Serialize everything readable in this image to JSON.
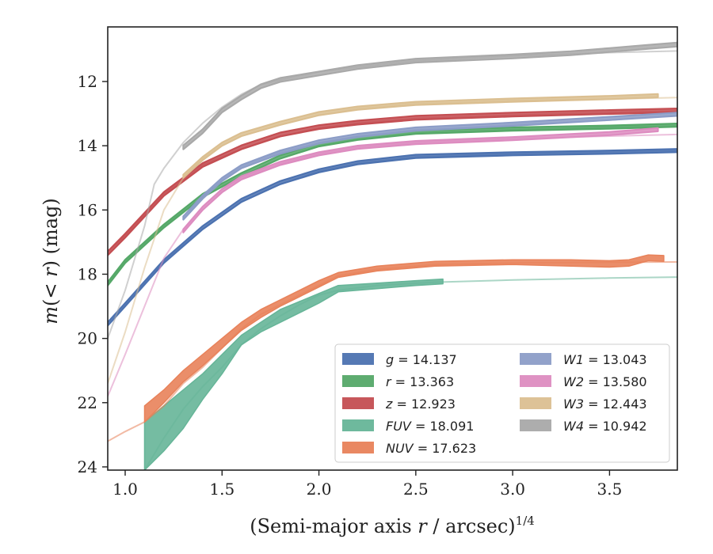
{
  "chart_data": {
    "type": "line",
    "xlabel": "(Semi-major axis r / arcsec)1/4",
    "xlabel_main": "(Semi-major axis ",
    "xlabel_var": "r",
    "xlabel_tail": " / arcsec)",
    "xlabel_sup": "1/4",
    "ylabel": "m(< r) (mag)",
    "ylabel_m": "m",
    "ylabel_paren_open": "(",
    "ylabel_lt": "< ",
    "ylabel_r": "r",
    "ylabel_paren_close": ")",
    "ylabel_unit": " (mag)",
    "xlim": [
      0.91,
      3.85
    ],
    "ylim": [
      24.1,
      10.3
    ],
    "y_inverted": true,
    "xticks": [
      1.0,
      1.5,
      2.0,
      2.5,
      3.0,
      3.5
    ],
    "xtick_labels": [
      "1.0",
      "1.5",
      "2.0",
      "2.5",
      "3.0",
      "3.5"
    ],
    "yticks": [
      12,
      14,
      16,
      18,
      20,
      22,
      24
    ],
    "ytick_labels": [
      "12",
      "14",
      "16",
      "18",
      "20",
      "22",
      "24"
    ],
    "grid": false,
    "legend_position": "lower-right",
    "series": [
      {
        "name": "g = 14.137",
        "band": "g",
        "value": "14.137",
        "color": "#4c72b0",
        "model": [
          [
            0.91,
            19.6
          ],
          [
            1.0,
            19.0
          ],
          [
            1.2,
            17.6
          ],
          [
            1.4,
            16.6
          ],
          [
            1.6,
            15.75
          ],
          [
            1.8,
            15.2
          ],
          [
            2.0,
            14.8
          ],
          [
            2.2,
            14.55
          ],
          [
            2.5,
            14.35
          ],
          [
            3.0,
            14.25
          ],
          [
            3.5,
            14.2
          ],
          [
            3.85,
            14.15
          ]
        ],
        "data": [
          [
            0.91,
            19.55
          ],
          [
            1.0,
            18.95
          ],
          [
            1.2,
            17.6
          ],
          [
            1.4,
            16.55
          ],
          [
            1.6,
            15.7
          ],
          [
            1.8,
            15.15
          ],
          [
            2.0,
            14.78
          ],
          [
            2.2,
            14.53
          ],
          [
            2.5,
            14.33
          ],
          [
            3.0,
            14.25
          ],
          [
            3.5,
            14.2
          ],
          [
            3.85,
            14.15
          ]
        ],
        "band_width": 0.05
      },
      {
        "name": "r = 13.363",
        "band": "r",
        "value": "13.363",
        "color": "#55a868",
        "model": [
          [
            0.91,
            18.3
          ],
          [
            1.0,
            17.6
          ],
          [
            1.2,
            16.5
          ],
          [
            1.4,
            15.6
          ],
          [
            1.6,
            14.95
          ],
          [
            1.8,
            14.4
          ],
          [
            2.0,
            14.0
          ],
          [
            2.2,
            13.8
          ],
          [
            2.5,
            13.6
          ],
          [
            3.0,
            13.5
          ],
          [
            3.5,
            13.42
          ],
          [
            3.85,
            13.38
          ]
        ],
        "data": [
          [
            0.91,
            18.3
          ],
          [
            1.0,
            17.6
          ],
          [
            1.2,
            16.5
          ],
          [
            1.4,
            15.55
          ],
          [
            1.6,
            14.9
          ],
          [
            1.8,
            14.35
          ],
          [
            2.0,
            13.97
          ],
          [
            2.2,
            13.77
          ],
          [
            2.5,
            13.58
          ],
          [
            3.0,
            13.48
          ],
          [
            3.5,
            13.42
          ],
          [
            3.85,
            13.36
          ]
        ],
        "band_width": 0.05
      },
      {
        "name": "z = 12.923",
        "band": "z",
        "value": "12.923",
        "color": "#c44e52",
        "model": [
          [
            0.91,
            17.3
          ],
          [
            1.0,
            16.8
          ],
          [
            1.2,
            15.5
          ],
          [
            1.4,
            14.6
          ],
          [
            1.6,
            14.1
          ],
          [
            1.8,
            13.7
          ],
          [
            2.0,
            13.45
          ],
          [
            2.2,
            13.3
          ],
          [
            2.5,
            13.15
          ],
          [
            3.0,
            13.05
          ],
          [
            3.5,
            12.97
          ],
          [
            3.85,
            12.92
          ]
        ],
        "data": [
          [
            0.91,
            17.35
          ],
          [
            1.0,
            16.8
          ],
          [
            1.2,
            15.5
          ],
          [
            1.4,
            14.6
          ],
          [
            1.6,
            14.05
          ],
          [
            1.8,
            13.65
          ],
          [
            2.0,
            13.42
          ],
          [
            2.2,
            13.28
          ],
          [
            2.5,
            13.13
          ],
          [
            3.0,
            13.03
          ],
          [
            3.5,
            12.95
          ],
          [
            3.85,
            12.9
          ]
        ],
        "band_width": 0.06
      },
      {
        "name": "FUV = 18.091",
        "band": "FUV",
        "value": "18.091",
        "color": "#66b598",
        "model": [
          [
            1.1,
            24.1
          ],
          [
            1.2,
            23.1
          ],
          [
            1.3,
            22.2
          ],
          [
            1.4,
            21.5
          ],
          [
            1.5,
            20.9
          ],
          [
            1.6,
            20.2
          ],
          [
            1.7,
            19.7
          ],
          [
            1.8,
            19.3
          ],
          [
            1.9,
            18.95
          ],
          [
            2.0,
            18.65
          ],
          [
            2.1,
            18.5
          ],
          [
            2.3,
            18.35
          ],
          [
            2.6,
            18.25
          ],
          [
            3.0,
            18.18
          ],
          [
            3.5,
            18.12
          ],
          [
            3.85,
            18.09
          ]
        ],
        "data_upper": [
          [
            1.1,
            24.1
          ],
          [
            1.2,
            23.5
          ],
          [
            1.3,
            22.8
          ],
          [
            1.4,
            21.9
          ],
          [
            1.5,
            21.1
          ],
          [
            1.6,
            20.2
          ],
          [
            1.7,
            19.8
          ],
          [
            1.8,
            19.5
          ],
          [
            1.9,
            19.2
          ],
          [
            2.0,
            18.9
          ],
          [
            2.1,
            18.55
          ],
          [
            2.3,
            18.45
          ],
          [
            2.5,
            18.35
          ],
          [
            2.64,
            18.3
          ]
        ],
        "data_lower": [
          [
            1.1,
            22.6
          ],
          [
            1.2,
            22.1
          ],
          [
            1.3,
            21.6
          ],
          [
            1.4,
            21.1
          ],
          [
            1.5,
            20.5
          ],
          [
            1.6,
            19.9
          ],
          [
            1.7,
            19.5
          ],
          [
            1.8,
            19.1
          ],
          [
            1.9,
            18.85
          ],
          [
            2.0,
            18.6
          ],
          [
            2.1,
            18.35
          ],
          [
            2.3,
            18.28
          ],
          [
            2.5,
            18.2
          ],
          [
            2.64,
            18.15
          ]
        ],
        "band_width": 0
      },
      {
        "name": "NUV = 17.623",
        "band": "NUV",
        "value": "17.623",
        "color": "#e8825a",
        "model": [
          [
            0.91,
            23.2
          ],
          [
            1.0,
            22.9
          ],
          [
            1.1,
            22.6
          ],
          [
            1.2,
            22.1
          ],
          [
            1.3,
            21.4
          ],
          [
            1.4,
            20.9
          ],
          [
            1.5,
            20.3
          ],
          [
            1.6,
            19.7
          ],
          [
            1.7,
            19.25
          ],
          [
            1.8,
            18.95
          ],
          [
            1.9,
            18.65
          ],
          [
            2.0,
            18.35
          ],
          [
            2.1,
            18.05
          ],
          [
            2.3,
            17.85
          ],
          [
            2.6,
            17.7
          ],
          [
            3.0,
            17.65
          ],
          [
            3.5,
            17.63
          ],
          [
            3.85,
            17.62
          ]
        ],
        "data_upper": [
          [
            1.1,
            22.6
          ],
          [
            1.2,
            22.0
          ],
          [
            1.3,
            21.35
          ],
          [
            1.4,
            20.85
          ],
          [
            1.5,
            20.3
          ],
          [
            1.6,
            19.75
          ],
          [
            1.7,
            19.35
          ],
          [
            1.8,
            19.0
          ],
          [
            1.9,
            18.7
          ],
          [
            2.0,
            18.4
          ],
          [
            2.1,
            18.1
          ],
          [
            2.3,
            17.9
          ],
          [
            2.6,
            17.75
          ],
          [
            3.0,
            17.7
          ],
          [
            3.3,
            17.75
          ],
          [
            3.5,
            17.78
          ],
          [
            3.6,
            17.75
          ],
          [
            3.7,
            17.58
          ],
          [
            3.78,
            17.6
          ]
        ],
        "data_lower": [
          [
            1.1,
            22.1
          ],
          [
            1.2,
            21.6
          ],
          [
            1.3,
            21.0
          ],
          [
            1.4,
            20.5
          ],
          [
            1.5,
            20.0
          ],
          [
            1.6,
            19.5
          ],
          [
            1.7,
            19.1
          ],
          [
            1.8,
            18.8
          ],
          [
            1.9,
            18.5
          ],
          [
            2.0,
            18.2
          ],
          [
            2.1,
            17.95
          ],
          [
            2.3,
            17.75
          ],
          [
            2.6,
            17.6
          ],
          [
            3.0,
            17.55
          ],
          [
            3.3,
            17.55
          ],
          [
            3.5,
            17.58
          ],
          [
            3.6,
            17.55
          ],
          [
            3.7,
            17.4
          ],
          [
            3.78,
            17.42
          ]
        ],
        "band_width": 0
      },
      {
        "name": "W1 = 13.043",
        "band": "W1",
        "value": "13.043",
        "color": "#8c9dc7",
        "model": [
          [
            1.3,
            16.2
          ],
          [
            1.4,
            15.6
          ],
          [
            1.5,
            15.05
          ],
          [
            1.6,
            14.65
          ],
          [
            1.8,
            14.2
          ],
          [
            2.0,
            13.9
          ],
          [
            2.2,
            13.7
          ],
          [
            2.5,
            13.5
          ],
          [
            3.0,
            13.35
          ],
          [
            3.5,
            13.2
          ],
          [
            3.85,
            13.05
          ]
        ],
        "data": [
          [
            1.3,
            16.25
          ],
          [
            1.4,
            15.6
          ],
          [
            1.5,
            15.05
          ],
          [
            1.6,
            14.65
          ],
          [
            1.8,
            14.2
          ],
          [
            2.0,
            13.88
          ],
          [
            2.2,
            13.68
          ],
          [
            2.5,
            13.48
          ],
          [
            3.0,
            13.33
          ],
          [
            3.5,
            13.15
          ],
          [
            3.85,
            13.02
          ]
        ],
        "band_width": 0.05
      },
      {
        "name": "W2 = 13.580",
        "band": "W2",
        "value": "13.580",
        "color": "#dd8cc0",
        "model": [
          [
            0.91,
            21.8
          ],
          [
            1.0,
            20.5
          ],
          [
            1.1,
            19.0
          ],
          [
            1.2,
            17.5
          ],
          [
            1.3,
            16.6
          ],
          [
            1.4,
            15.9
          ],
          [
            1.5,
            15.35
          ],
          [
            1.6,
            15.0
          ],
          [
            1.8,
            14.55
          ],
          [
            2.0,
            14.25
          ],
          [
            2.2,
            14.05
          ],
          [
            2.5,
            13.9
          ],
          [
            3.0,
            13.78
          ],
          [
            3.5,
            13.7
          ],
          [
            3.85,
            13.65
          ]
        ],
        "data": [
          [
            1.3,
            16.65
          ],
          [
            1.4,
            15.95
          ],
          [
            1.5,
            15.4
          ],
          [
            1.6,
            15.0
          ],
          [
            1.8,
            14.55
          ],
          [
            2.0,
            14.25
          ],
          [
            2.2,
            14.05
          ],
          [
            2.5,
            13.9
          ],
          [
            3.0,
            13.78
          ],
          [
            3.5,
            13.62
          ],
          [
            3.75,
            13.5
          ]
        ],
        "band_width": 0.05
      },
      {
        "name": "W3 = 12.443",
        "band": "W3",
        "value": "12.443",
        "color": "#dbbf91",
        "model": [
          [
            0.91,
            21.4
          ],
          [
            1.0,
            19.8
          ],
          [
            1.1,
            17.8
          ],
          [
            1.2,
            16.0
          ],
          [
            1.3,
            15.0
          ],
          [
            1.4,
            14.4
          ],
          [
            1.5,
            14.0
          ],
          [
            1.6,
            13.7
          ],
          [
            1.8,
            13.35
          ],
          [
            2.0,
            13.05
          ],
          [
            2.2,
            12.85
          ],
          [
            2.5,
            12.7
          ],
          [
            3.0,
            12.6
          ],
          [
            3.5,
            12.55
          ],
          [
            3.85,
            12.5
          ]
        ],
        "data": [
          [
            1.3,
            14.95
          ],
          [
            1.4,
            14.4
          ],
          [
            1.5,
            13.95
          ],
          [
            1.6,
            13.65
          ],
          [
            1.8,
            13.3
          ],
          [
            2.0,
            13.0
          ],
          [
            2.2,
            12.83
          ],
          [
            2.5,
            12.68
          ],
          [
            3.0,
            12.58
          ],
          [
            3.5,
            12.5
          ],
          [
            3.75,
            12.44
          ]
        ],
        "band_width": 0.05
      },
      {
        "name": "W4 = 10.942",
        "band": "W4",
        "value": "10.942",
        "color": "#a9a9a9",
        "model": [
          [
            0.91,
            20.0
          ],
          [
            1.0,
            18.5
          ],
          [
            1.1,
            16.5
          ],
          [
            1.15,
            15.2
          ],
          [
            1.2,
            14.7
          ],
          [
            1.3,
            13.9
          ],
          [
            1.4,
            13.3
          ],
          [
            1.5,
            12.8
          ],
          [
            1.6,
            12.4
          ],
          [
            1.7,
            12.1
          ],
          [
            1.8,
            11.95
          ],
          [
            2.0,
            11.7
          ],
          [
            2.2,
            11.55
          ],
          [
            2.5,
            11.35
          ],
          [
            3.0,
            11.2
          ],
          [
            3.5,
            11.1
          ],
          [
            3.85,
            11.05
          ]
        ],
        "data": [
          [
            1.3,
            14.05
          ],
          [
            1.4,
            13.55
          ],
          [
            1.5,
            12.9
          ],
          [
            1.6,
            12.5
          ],
          [
            1.7,
            12.15
          ],
          [
            1.8,
            11.95
          ],
          [
            2.0,
            11.75
          ],
          [
            2.2,
            11.55
          ],
          [
            2.5,
            11.35
          ],
          [
            3.0,
            11.22
          ],
          [
            3.3,
            11.12
          ],
          [
            3.5,
            11.02
          ],
          [
            3.7,
            10.92
          ],
          [
            3.85,
            10.85
          ]
        ],
        "band_width": 0.06
      }
    ]
  }
}
